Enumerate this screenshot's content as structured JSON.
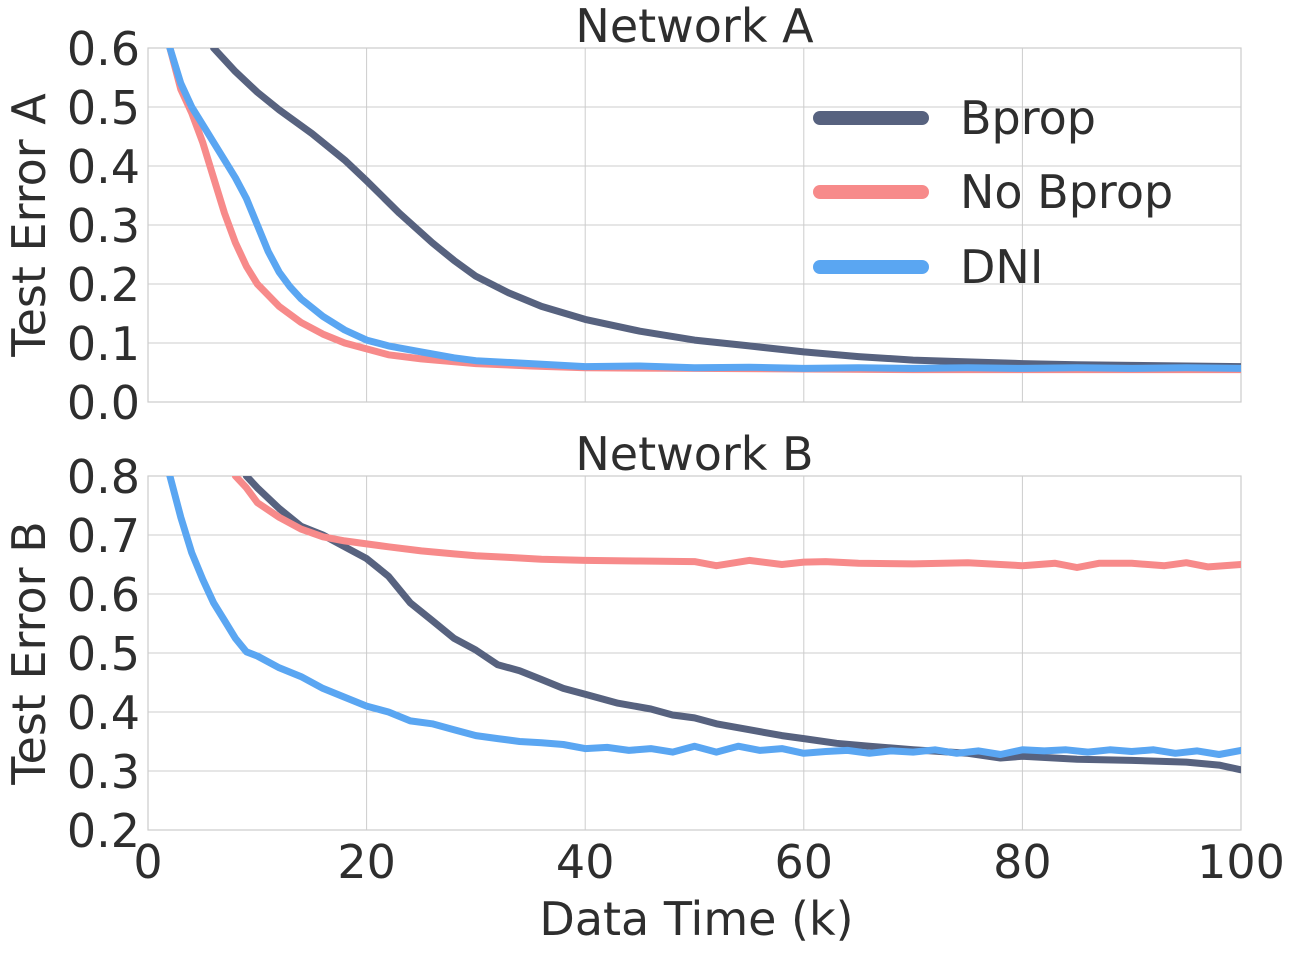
{
  "chart_data": [
    {
      "type": "line",
      "title": "Network A",
      "xlabel": "",
      "ylabel": "Test Error A",
      "xlim": [
        0,
        100
      ],
      "ylim": [
        0,
        0.6
      ],
      "xticks": [],
      "yticks": [
        "0.0",
        "0.1",
        "0.2",
        "0.3",
        "0.4",
        "0.5",
        "0.6"
      ],
      "grid": true,
      "legend_placement": "top-right",
      "series": [
        {
          "name": "Bprop",
          "color": "#57627f",
          "points": [
            [
              6,
              0.6
            ],
            [
              8,
              0.56
            ],
            [
              10,
              0.525
            ],
            [
              12,
              0.495
            ],
            [
              15,
              0.455
            ],
            [
              18,
              0.41
            ],
            [
              20,
              0.375
            ],
            [
              23,
              0.32
            ],
            [
              26,
              0.27
            ],
            [
              28,
              0.24
            ],
            [
              30,
              0.213
            ],
            [
              33,
              0.185
            ],
            [
              36,
              0.162
            ],
            [
              40,
              0.14
            ],
            [
              45,
              0.12
            ],
            [
              50,
              0.105
            ],
            [
              55,
              0.095
            ],
            [
              60,
              0.085
            ],
            [
              65,
              0.077
            ],
            [
              70,
              0.071
            ],
            [
              75,
              0.068
            ],
            [
              80,
              0.065
            ],
            [
              85,
              0.063
            ],
            [
              90,
              0.062
            ],
            [
              95,
              0.061
            ],
            [
              100,
              0.06
            ]
          ]
        },
        {
          "name": "No Bprop",
          "color": "#f78a8a",
          "points": [
            [
              2,
              0.6
            ],
            [
              3,
              0.53
            ],
            [
              4,
              0.49
            ],
            [
              5,
              0.44
            ],
            [
              6,
              0.38
            ],
            [
              7,
              0.32
            ],
            [
              8,
              0.27
            ],
            [
              9,
              0.23
            ],
            [
              10,
              0.2
            ],
            [
              12,
              0.162
            ],
            [
              14,
              0.135
            ],
            [
              16,
              0.115
            ],
            [
              18,
              0.1
            ],
            [
              20,
              0.09
            ],
            [
              22,
              0.08
            ],
            [
              25,
              0.073
            ],
            [
              30,
              0.065
            ],
            [
              35,
              0.061
            ],
            [
              40,
              0.058
            ],
            [
              50,
              0.057
            ],
            [
              60,
              0.056
            ],
            [
              70,
              0.055
            ],
            [
              80,
              0.055
            ],
            [
              90,
              0.055
            ],
            [
              100,
              0.055
            ]
          ]
        },
        {
          "name": "DNI",
          "color": "#5aa6f2",
          "points": [
            [
              2,
              0.6
            ],
            [
              3,
              0.54
            ],
            [
              4,
              0.5
            ],
            [
              5,
              0.47
            ],
            [
              6,
              0.44
            ],
            [
              7,
              0.41
            ],
            [
              8,
              0.38
            ],
            [
              9,
              0.345
            ],
            [
              10,
              0.3
            ],
            [
              11,
              0.255
            ],
            [
              12,
              0.22
            ],
            [
              13,
              0.195
            ],
            [
              14,
              0.175
            ],
            [
              16,
              0.145
            ],
            [
              18,
              0.122
            ],
            [
              20,
              0.105
            ],
            [
              22,
              0.095
            ],
            [
              25,
              0.085
            ],
            [
              28,
              0.075
            ],
            [
              30,
              0.07
            ],
            [
              35,
              0.065
            ],
            [
              40,
              0.06
            ],
            [
              45,
              0.061
            ],
            [
              50,
              0.058
            ],
            [
              55,
              0.059
            ],
            [
              60,
              0.057
            ],
            [
              65,
              0.058
            ],
            [
              70,
              0.057
            ],
            [
              75,
              0.058
            ],
            [
              80,
              0.057
            ],
            [
              85,
              0.058
            ],
            [
              90,
              0.057
            ],
            [
              95,
              0.058
            ],
            [
              100,
              0.057
            ]
          ]
        }
      ]
    },
    {
      "type": "line",
      "title": "Network B",
      "xlabel": "Data Time (k)",
      "ylabel": "Test Error B",
      "xlim": [
        0,
        100
      ],
      "ylim": [
        0.2,
        0.8
      ],
      "xticks": [
        "0",
        "20",
        "40",
        "60",
        "80",
        "100"
      ],
      "yticks": [
        "0.2",
        "0.3",
        "0.4",
        "0.5",
        "0.6",
        "0.7",
        "0.8"
      ],
      "grid": true,
      "series": [
        {
          "name": "Bprop",
          "color": "#57627f",
          "points": [
            [
              9,
              0.8
            ],
            [
              10,
              0.78
            ],
            [
              12,
              0.745
            ],
            [
              14,
              0.715
            ],
            [
              16,
              0.7
            ],
            [
              18,
              0.68
            ],
            [
              20,
              0.66
            ],
            [
              22,
              0.63
            ],
            [
              24,
              0.585
            ],
            [
              26,
              0.555
            ],
            [
              28,
              0.525
            ],
            [
              30,
              0.505
            ],
            [
              32,
              0.48
            ],
            [
              34,
              0.47
            ],
            [
              36,
              0.455
            ],
            [
              38,
              0.44
            ],
            [
              40,
              0.43
            ],
            [
              43,
              0.415
            ],
            [
              46,
              0.405
            ],
            [
              48,
              0.395
            ],
            [
              50,
              0.39
            ],
            [
              52,
              0.38
            ],
            [
              55,
              0.37
            ],
            [
              58,
              0.36
            ],
            [
              60,
              0.355
            ],
            [
              63,
              0.347
            ],
            [
              66,
              0.342
            ],
            [
              70,
              0.336
            ],
            [
              75,
              0.33
            ],
            [
              78,
              0.322
            ],
            [
              80,
              0.325
            ],
            [
              85,
              0.32
            ],
            [
              90,
              0.318
            ],
            [
              95,
              0.315
            ],
            [
              98,
              0.31
            ],
            [
              100,
              0.302
            ]
          ]
        },
        {
          "name": "No Bprop",
          "color": "#f78a8a",
          "points": [
            [
              8,
              0.8
            ],
            [
              9,
              0.78
            ],
            [
              10,
              0.755
            ],
            [
              12,
              0.73
            ],
            [
              14,
              0.71
            ],
            [
              16,
              0.697
            ],
            [
              18,
              0.69
            ],
            [
              20,
              0.685
            ],
            [
              22,
              0.68
            ],
            [
              25,
              0.673
            ],
            [
              28,
              0.668
            ],
            [
              30,
              0.665
            ],
            [
              33,
              0.662
            ],
            [
              36,
              0.659
            ],
            [
              40,
              0.657
            ],
            [
              45,
              0.656
            ],
            [
              50,
              0.655
            ],
            [
              52,
              0.648
            ],
            [
              55,
              0.657
            ],
            [
              58,
              0.65
            ],
            [
              60,
              0.654
            ],
            [
              62,
              0.655
            ],
            [
              65,
              0.652
            ],
            [
              70,
              0.651
            ],
            [
              75,
              0.653
            ],
            [
              80,
              0.648
            ],
            [
              83,
              0.652
            ],
            [
              85,
              0.645
            ],
            [
              87,
              0.652
            ],
            [
              90,
              0.652
            ],
            [
              93,
              0.648
            ],
            [
              95,
              0.653
            ],
            [
              97,
              0.646
            ],
            [
              100,
              0.65
            ]
          ]
        },
        {
          "name": "DNI",
          "color": "#5aa6f2",
          "points": [
            [
              2,
              0.8
            ],
            [
              3,
              0.73
            ],
            [
              4,
              0.67
            ],
            [
              5,
              0.625
            ],
            [
              6,
              0.585
            ],
            [
              7,
              0.555
            ],
            [
              8,
              0.525
            ],
            [
              9,
              0.502
            ],
            [
              10,
              0.495
            ],
            [
              12,
              0.475
            ],
            [
              14,
              0.46
            ],
            [
              16,
              0.44
            ],
            [
              18,
              0.425
            ],
            [
              20,
              0.41
            ],
            [
              22,
              0.4
            ],
            [
              24,
              0.385
            ],
            [
              26,
              0.38
            ],
            [
              28,
              0.37
            ],
            [
              30,
              0.36
            ],
            [
              32,
              0.355
            ],
            [
              34,
              0.35
            ],
            [
              36,
              0.348
            ],
            [
              38,
              0.345
            ],
            [
              40,
              0.338
            ],
            [
              42,
              0.34
            ],
            [
              44,
              0.335
            ],
            [
              46,
              0.338
            ],
            [
              48,
              0.332
            ],
            [
              50,
              0.342
            ],
            [
              52,
              0.332
            ],
            [
              54,
              0.342
            ],
            [
              56,
              0.335
            ],
            [
              58,
              0.338
            ],
            [
              60,
              0.33
            ],
            [
              62,
              0.333
            ],
            [
              64,
              0.335
            ],
            [
              66,
              0.33
            ],
            [
              68,
              0.334
            ],
            [
              70,
              0.332
            ],
            [
              72,
              0.336
            ],
            [
              74,
              0.33
            ],
            [
              76,
              0.334
            ],
            [
              78,
              0.328
            ],
            [
              80,
              0.336
            ],
            [
              82,
              0.334
            ],
            [
              84,
              0.336
            ],
            [
              86,
              0.332
            ],
            [
              88,
              0.336
            ],
            [
              90,
              0.333
            ],
            [
              92,
              0.336
            ],
            [
              94,
              0.33
            ],
            [
              96,
              0.334
            ],
            [
              98,
              0.328
            ],
            [
              100,
              0.335
            ]
          ]
        }
      ]
    }
  ]
}
